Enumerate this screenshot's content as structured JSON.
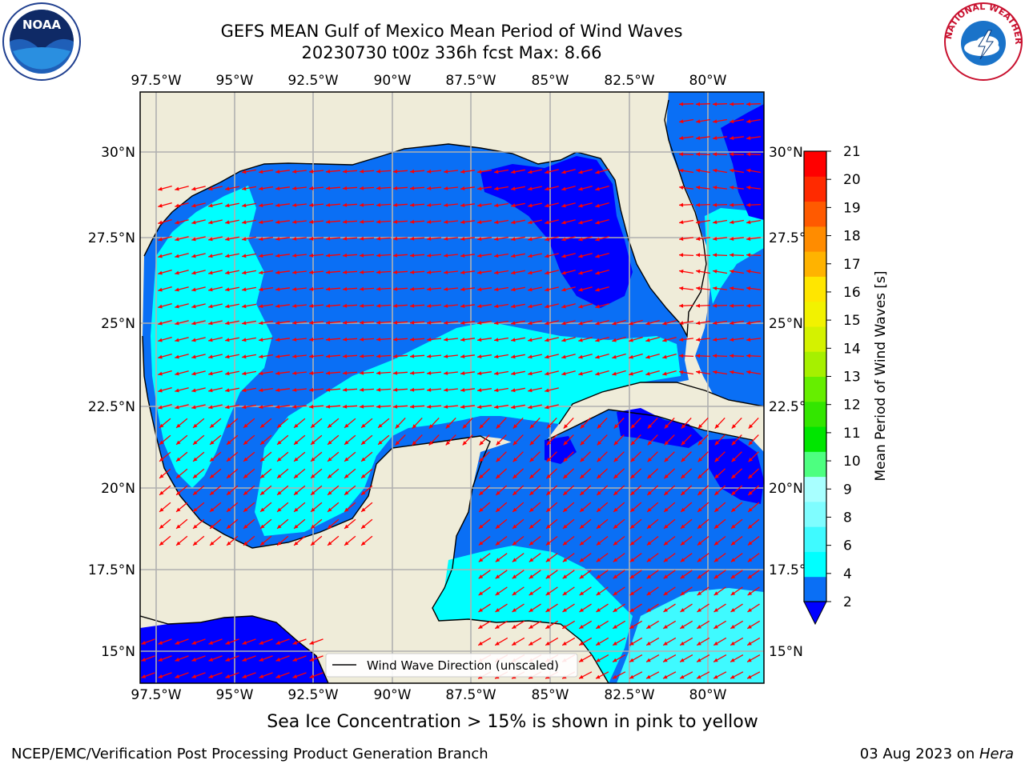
{
  "title": {
    "line1": "GEFS MEAN Gulf of Mexico Mean Period of Wind Waves",
    "line2": "20230730 t00z 336h fcst   Max: 8.66"
  },
  "axes": {
    "lon_labels": [
      "97.5°W",
      "95°W",
      "92.5°W",
      "90°W",
      "87.5°W",
      "85°W",
      "82.5°W",
      "80°W"
    ],
    "lat_labels_left": [
      "30°N",
      "27.5°N",
      "25°N",
      "22.5°N",
      "20°N",
      "17.5°N",
      "15°N"
    ],
    "lat_labels_right": [
      "30°N",
      "27.5°N",
      "25°N",
      "22.5°N",
      "20°N",
      "17.5°N",
      "15°N"
    ]
  },
  "legend": {
    "label": "Wind Wave Direction (unscaled)"
  },
  "colorbar": {
    "label": "Mean Period of Wind Waves [s]",
    "ticks": [
      "2",
      "4",
      "6",
      "8",
      "9",
      "10",
      "11",
      "12",
      "13",
      "14",
      "15",
      "16",
      "17",
      "18",
      "19",
      "20",
      "21"
    ],
    "colors": [
      "#0a6ff5",
      "#00ffff",
      "#3ffaff",
      "#7ffdff",
      "#a8ffff",
      "#4dff80",
      "#00e600",
      "#33e600",
      "#66ee00",
      "#a6f000",
      "#d4f200",
      "#f2f200",
      "#ffe600",
      "#ffb300",
      "#ff8c00",
      "#ff5a00",
      "#ff2a00",
      "#ff0000"
    ],
    "under_color": "#0000ff"
  },
  "colors": {
    "land": "#efecd9",
    "ocean_2_4": "#0a6ff5",
    "ocean_lt2": "#0000ff",
    "ocean_4_6": "#00ffff",
    "ocean_6_8": "#3ffaff",
    "arrows": "#ff0000"
  },
  "logos": {
    "noaa": "NOAA",
    "nws_text": "NATIONAL WEATHER SERVICE"
  },
  "footer": {
    "caption": "Sea Ice Concentration > 15% is shown in pink to yellow",
    "credit": "NCEP/EMC/Verification Post Processing Product Generation Branch",
    "date": "03 Aug 2023 on ",
    "machine": "Hera"
  }
}
